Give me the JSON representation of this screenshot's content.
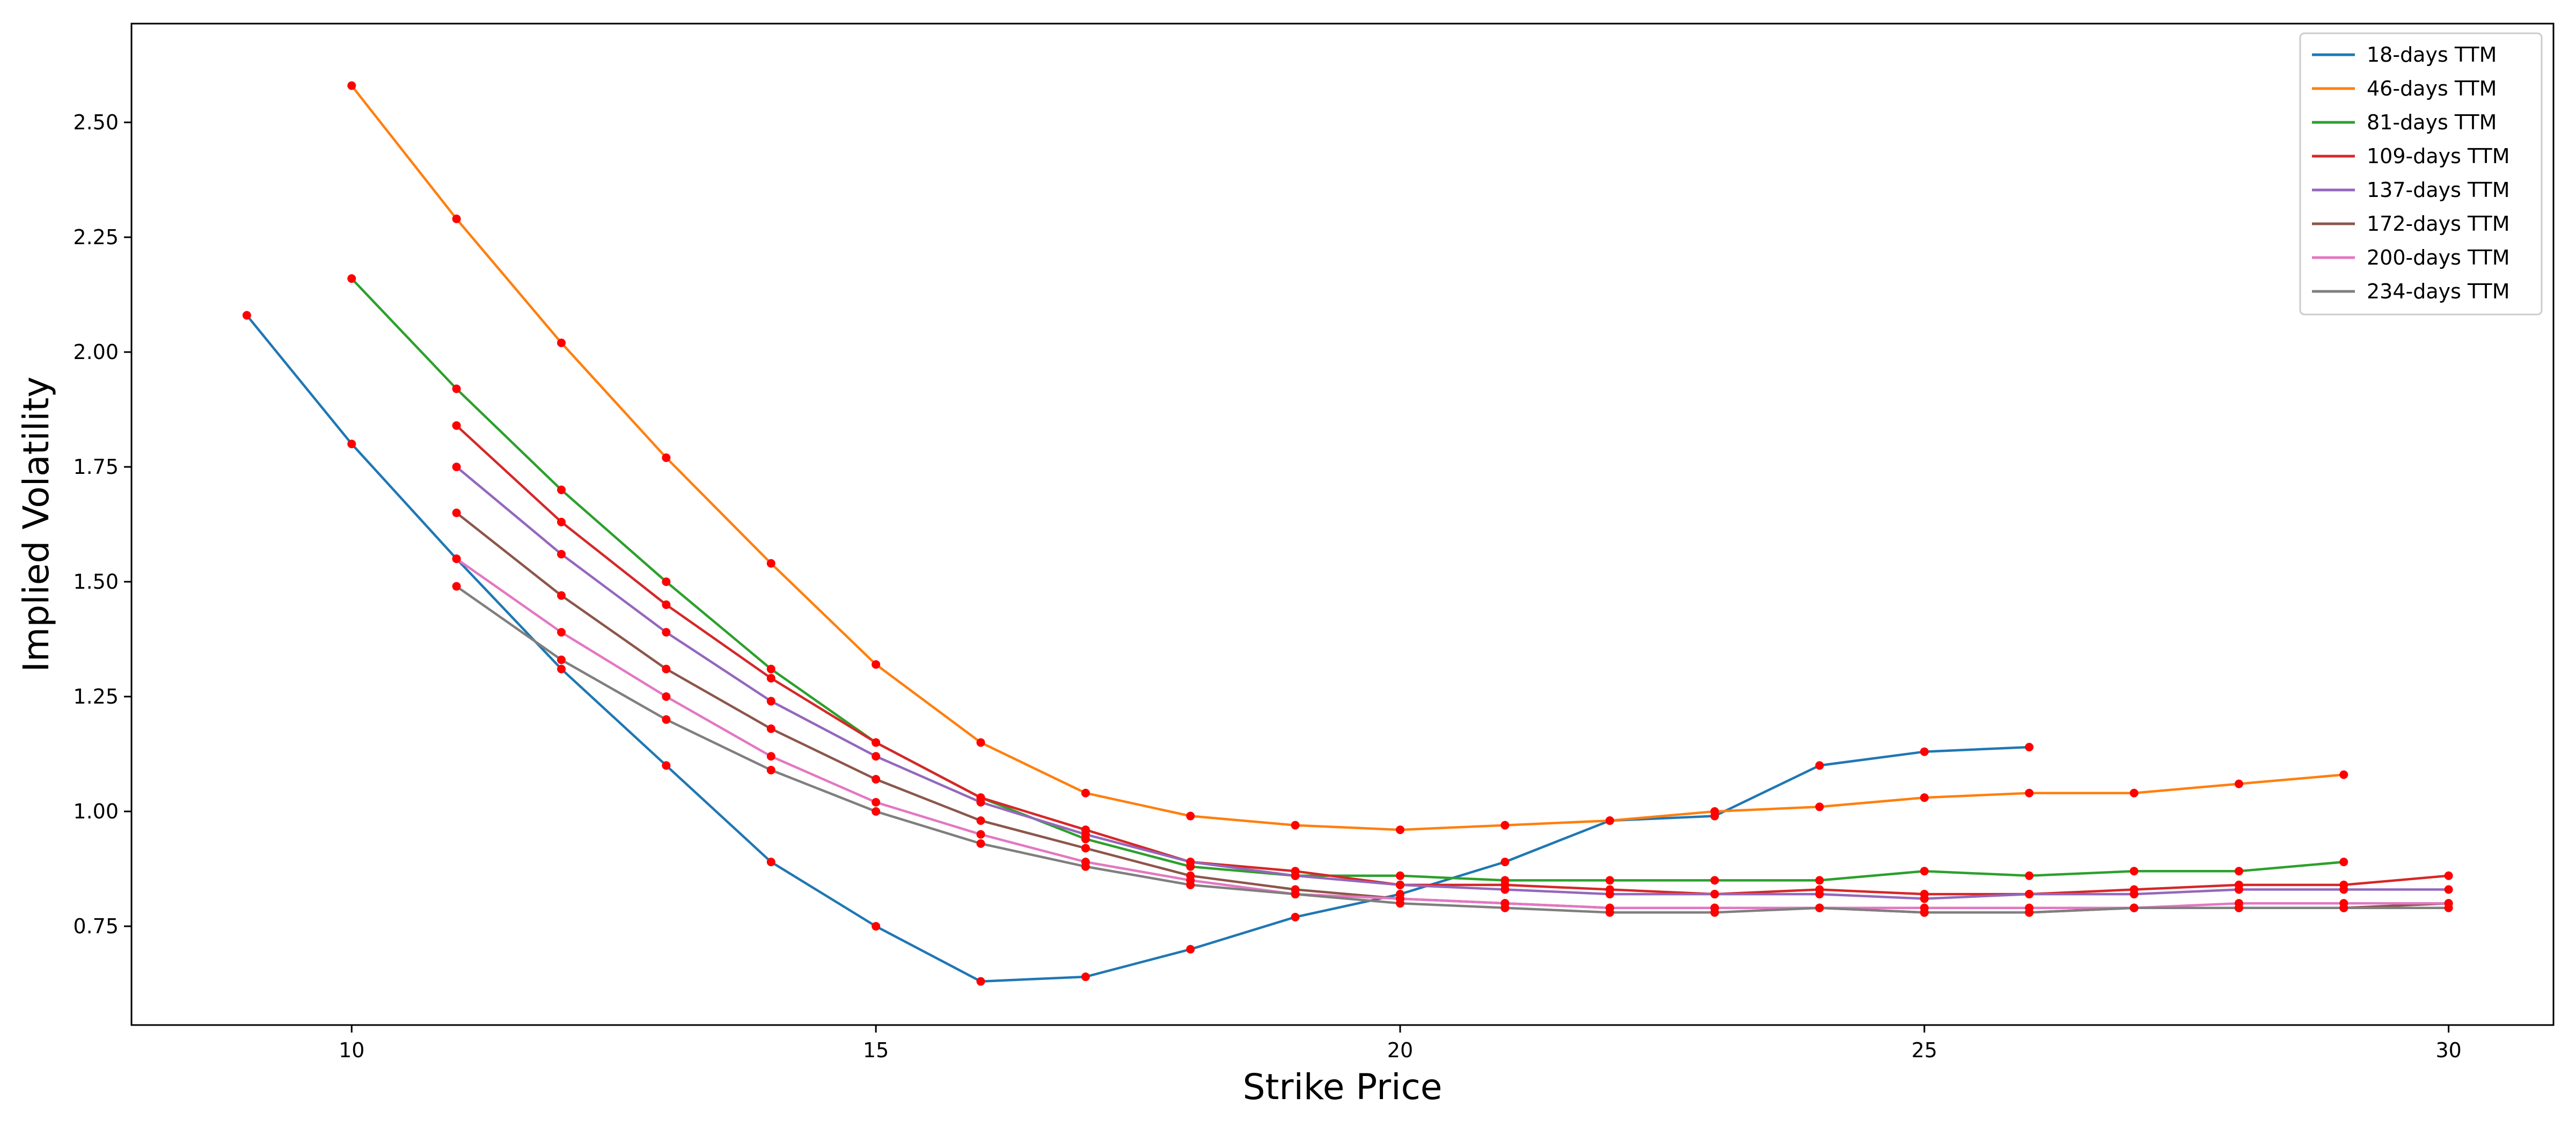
{
  "chart_data": {
    "type": "line",
    "title": "",
    "xlabel": "Strike Price",
    "ylabel": "Implied Volatility",
    "xlim": [
      7.9,
      31.0
    ],
    "ylim": [
      0.535,
      2.715
    ],
    "xticks": [
      10,
      15,
      20,
      25,
      30
    ],
    "yticks": [
      0.75,
      1.0,
      1.25,
      1.5,
      1.75,
      2.0,
      2.25,
      2.5
    ],
    "grid": false,
    "legend_position": "top-right",
    "marker_color": "#ff0000",
    "series": [
      {
        "name": "18-days TTM",
        "color": "#1f77b4",
        "x": [
          9,
          10,
          11,
          12,
          13,
          14,
          15,
          16,
          17,
          18,
          19,
          20,
          21,
          22,
          23,
          24,
          25,
          26
        ],
        "y": [
          2.08,
          1.8,
          1.55,
          1.31,
          1.1,
          0.89,
          0.75,
          0.63,
          0.64,
          0.7,
          0.77,
          0.82,
          0.89,
          0.98,
          0.99,
          1.1,
          1.13,
          1.14
        ]
      },
      {
        "name": "46-days TTM",
        "color": "#ff7f0e",
        "x": [
          10,
          11,
          12,
          13,
          14,
          15,
          16,
          17,
          18,
          19,
          20,
          21,
          22,
          23,
          24,
          25,
          26,
          27,
          28,
          29
        ],
        "y": [
          2.58,
          2.29,
          2.02,
          1.77,
          1.54,
          1.32,
          1.15,
          1.04,
          0.99,
          0.97,
          0.96,
          0.97,
          0.98,
          1.0,
          1.01,
          1.03,
          1.04,
          1.04,
          1.06,
          1.08
        ]
      },
      {
        "name": "81-days TTM",
        "color": "#2ca02c",
        "x": [
          10,
          11,
          12,
          13,
          14,
          15,
          16,
          17,
          18,
          19,
          20,
          21,
          22,
          23,
          24,
          25,
          26,
          27,
          28,
          29
        ],
        "y": [
          2.16,
          1.92,
          1.7,
          1.5,
          1.31,
          1.15,
          1.03,
          0.94,
          0.88,
          0.86,
          0.86,
          0.85,
          0.85,
          0.85,
          0.85,
          0.87,
          0.86,
          0.87,
          0.87,
          0.89
        ]
      },
      {
        "name": "109-days TTM",
        "color": "#d62728",
        "x": [
          11,
          12,
          13,
          14,
          15,
          16,
          17,
          18,
          19,
          20,
          21,
          22,
          23,
          24,
          25,
          26,
          27,
          28,
          29,
          30
        ],
        "y": [
          1.84,
          1.63,
          1.45,
          1.29,
          1.15,
          1.03,
          0.96,
          0.89,
          0.87,
          0.84,
          0.84,
          0.83,
          0.82,
          0.83,
          0.82,
          0.82,
          0.83,
          0.84,
          0.84,
          0.86
        ]
      },
      {
        "name": "137-days TTM",
        "color": "#9467bd",
        "x": [
          11,
          12,
          13,
          14,
          15,
          16,
          17,
          18,
          19,
          20,
          21,
          22,
          23,
          24,
          25,
          26,
          27,
          28,
          29,
          30
        ],
        "y": [
          1.75,
          1.56,
          1.39,
          1.24,
          1.12,
          1.02,
          0.95,
          0.89,
          0.86,
          0.84,
          0.83,
          0.82,
          0.82,
          0.82,
          0.81,
          0.82,
          0.82,
          0.83,
          0.83,
          0.83
        ]
      },
      {
        "name": "172-days TTM",
        "color": "#8c564b",
        "x": [
          11,
          12,
          13,
          14,
          15,
          16,
          17,
          18,
          19,
          20,
          21,
          22,
          23,
          24,
          25,
          26,
          27,
          28,
          29,
          30
        ],
        "y": [
          1.65,
          1.47,
          1.31,
          1.18,
          1.07,
          0.98,
          0.92,
          0.86,
          0.83,
          0.81,
          0.8,
          0.79,
          0.79,
          0.79,
          0.78,
          0.78,
          0.79,
          0.79,
          0.79,
          0.8
        ]
      },
      {
        "name": "200-days TTM",
        "color": "#e377c2",
        "x": [
          11,
          12,
          13,
          14,
          15,
          16,
          17,
          18,
          19,
          20,
          21,
          22,
          23,
          24,
          25,
          26,
          27,
          28,
          29,
          30
        ],
        "y": [
          1.55,
          1.39,
          1.25,
          1.12,
          1.02,
          0.95,
          0.89,
          0.85,
          0.82,
          0.81,
          0.8,
          0.79,
          0.79,
          0.79,
          0.79,
          0.79,
          0.79,
          0.8,
          0.8,
          0.8
        ]
      },
      {
        "name": "234-days TTM",
        "color": "#7f7f7f",
        "x": [
          11,
          12,
          13,
          14,
          15,
          16,
          17,
          18,
          19,
          20,
          21,
          22,
          23,
          24,
          25,
          26,
          27,
          28,
          29,
          30
        ],
        "y": [
          1.49,
          1.33,
          1.2,
          1.09,
          1.0,
          0.93,
          0.88,
          0.84,
          0.82,
          0.8,
          0.79,
          0.78,
          0.78,
          0.79,
          0.78,
          0.78,
          0.79,
          0.79,
          0.79,
          0.79
        ]
      }
    ]
  }
}
